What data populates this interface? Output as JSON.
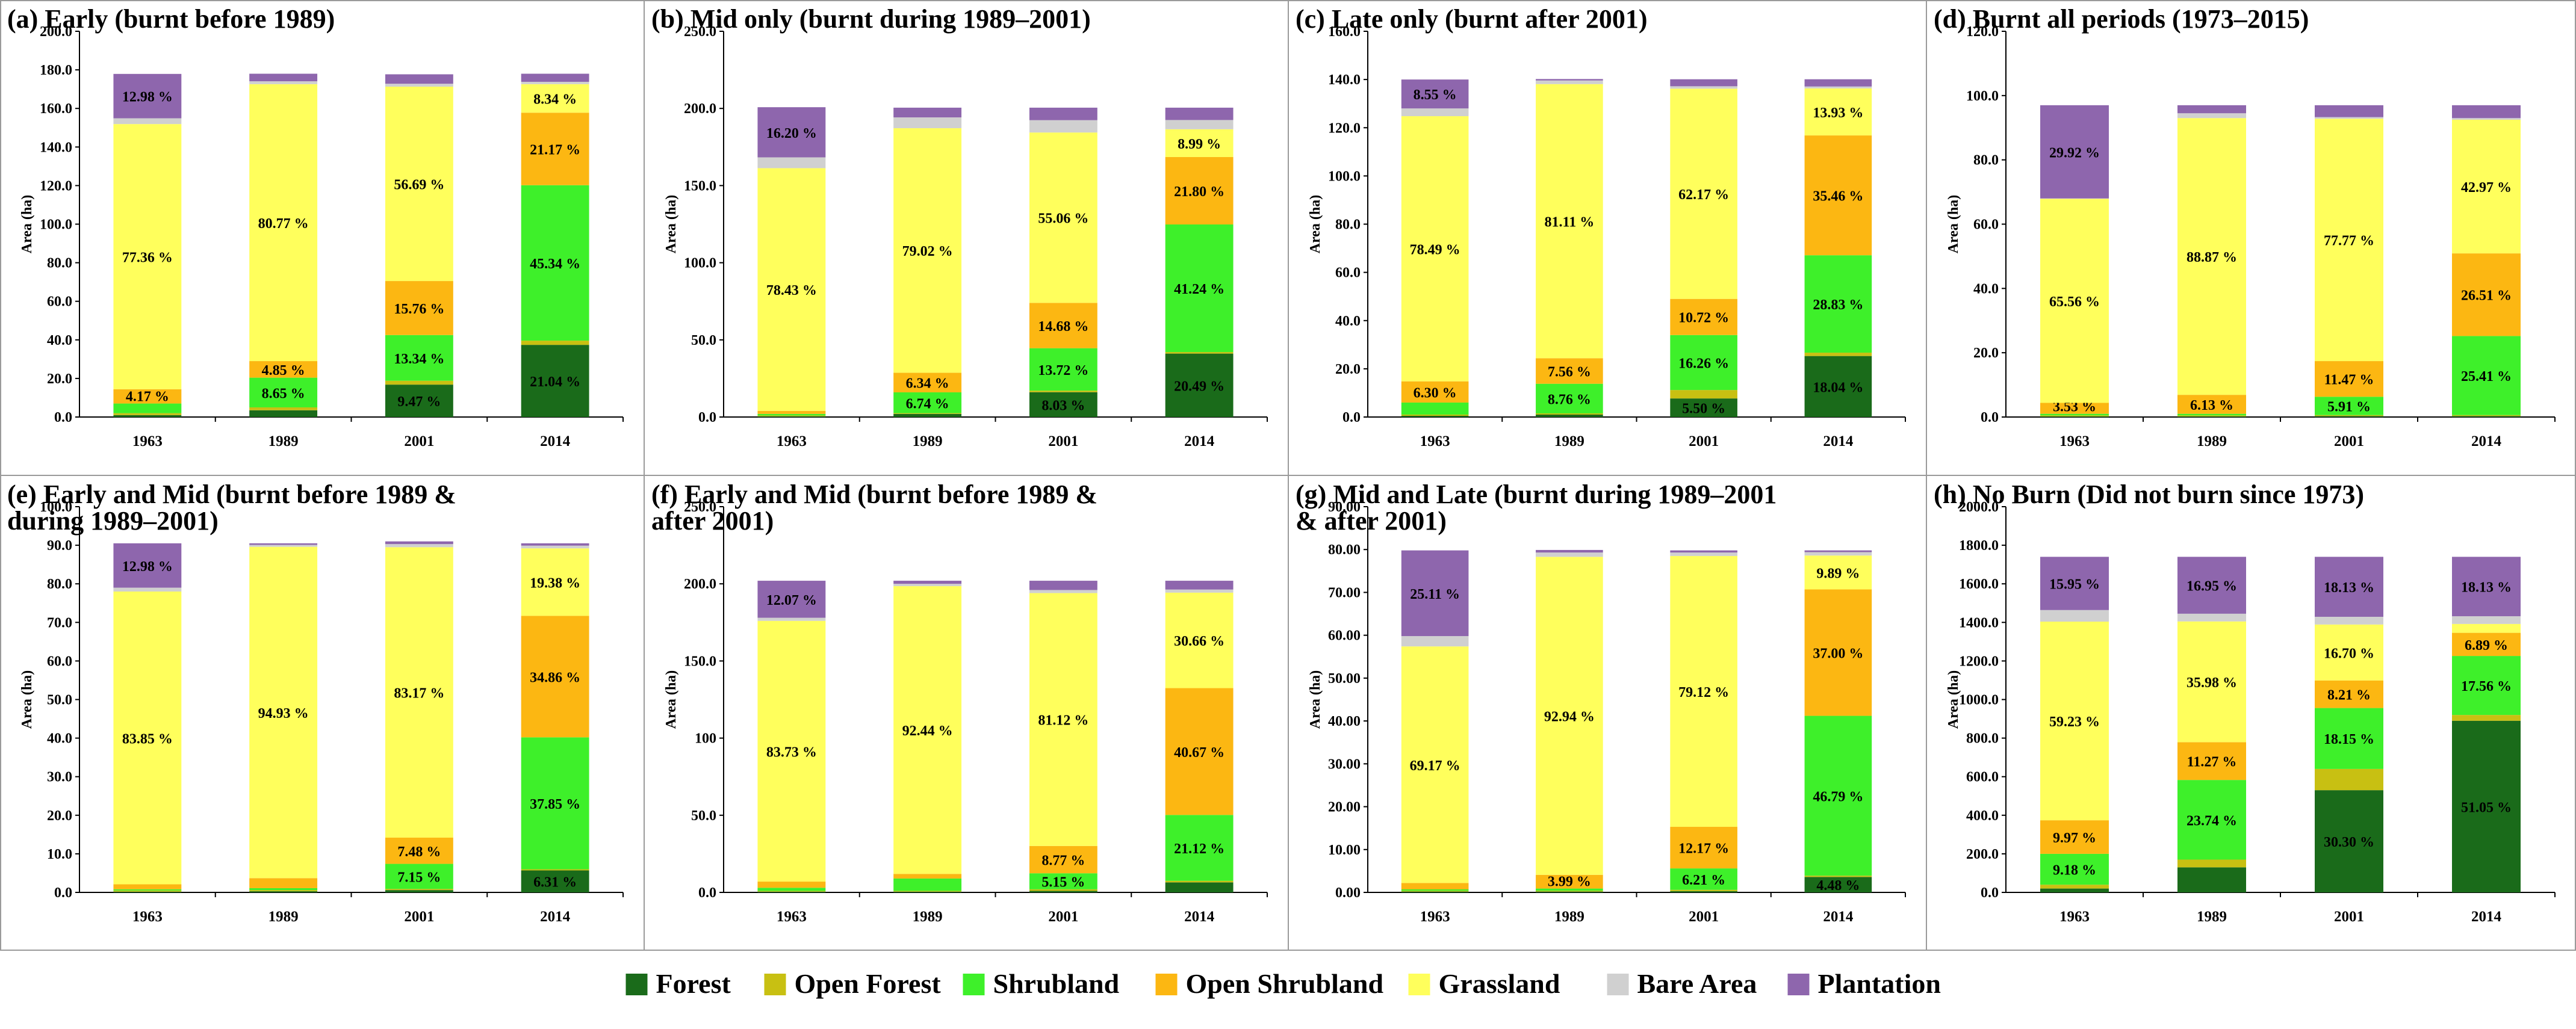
{
  "legend": [
    {
      "name": "Forest",
      "color": "#1a6b1a"
    },
    {
      "name": "Open Forest",
      "color": "#c8c012"
    },
    {
      "name": "Shrubland",
      "color": "#3ef02a"
    },
    {
      "name": "Open Shrubland",
      "color": "#fcb712"
    },
    {
      "name": "Grassland",
      "color": "#ffff5c"
    },
    {
      "name": "Bare Area",
      "color": "#d0d0d0"
    },
    {
      "name": "Plantation",
      "color": "#8e66ad"
    }
  ],
  "chart_data": [
    {
      "type": "bar",
      "stacked": true,
      "title": "(a)     Early (burnt before 1989)",
      "ylabel": "Area (ha)",
      "categories": [
        "1963",
        "1989",
        "2001",
        "2014"
      ],
      "ylim": [
        0,
        200
      ],
      "yticks": [
        "0.0",
        "20.0",
        "40.0",
        "60.0",
        "80.0",
        "100.0",
        "120.0",
        "140.0",
        "160.0",
        "180.0",
        "200.0"
      ],
      "series": [
        {
          "name": "Forest",
          "values": [
            1,
            3.5,
            16.8,
            37.4
          ],
          "labels": [
            "",
            "",
            "9.47 %",
            "21.04 %"
          ]
        },
        {
          "name": "Open Forest",
          "values": [
            1,
            1.5,
            2,
            2.2
          ],
          "labels": [
            "",
            "",
            "",
            ""
          ]
        },
        {
          "name": "Shrubland",
          "values": [
            5,
            15.4,
            23.7,
            80.6
          ],
          "labels": [
            "",
            "8.65 %",
            "13.34 %",
            "45.34 %"
          ]
        },
        {
          "name": "Open Shrubland",
          "values": [
            7.4,
            8.6,
            28,
            37.6
          ],
          "labels": [
            "4.17 %",
            "4.85 %",
            "15.76 %",
            "21.17 %"
          ]
        },
        {
          "name": "Grassland",
          "values": [
            137.5,
            143.6,
            100.8,
            14.8
          ],
          "labels": [
            "77.36 %",
            "80.77 %",
            "56.69 %",
            "8.34 %"
          ]
        },
        {
          "name": "Bare Area",
          "values": [
            3,
            1.5,
            1.5,
            1.2
          ],
          "labels": [
            "",
            "",
            "",
            ""
          ]
        },
        {
          "name": "Plantation",
          "values": [
            23,
            3.9,
            4.9,
            4.2
          ],
          "labels": [
            "12.98 %",
            "",
            "",
            ""
          ]
        }
      ]
    },
    {
      "type": "bar",
      "stacked": true,
      "title": "(b)  Mid only (burnt during 1989–2001)",
      "ylabel": "Area (ha)",
      "categories": [
        "1963",
        "1989",
        "2001",
        "2014"
      ],
      "ylim": [
        0,
        250
      ],
      "yticks": [
        "0.0",
        "50.0",
        "100.0",
        "150.0",
        "200.0",
        "250.0"
      ],
      "series": [
        {
          "name": "Forest",
          "values": [
            0.5,
            2,
            16.1,
            41.1
          ],
          "labels": [
            "",
            "",
            "8.03 %",
            "20.49 %"
          ]
        },
        {
          "name": "Open Forest",
          "values": [
            0.5,
            0.5,
            1,
            1
          ],
          "labels": [
            "",
            "",
            "",
            ""
          ]
        },
        {
          "name": "Shrubland",
          "values": [
            1,
            13.5,
            27.5,
            82.7
          ],
          "labels": [
            "",
            "6.74 %",
            "13.72 %",
            "41.24 %"
          ]
        },
        {
          "name": "Open Shrubland",
          "values": [
            2,
            12.7,
            29.4,
            43.7
          ],
          "labels": [
            "",
            "6.34 %",
            "14.68 %",
            "21.80 %"
          ]
        },
        {
          "name": "Grassland",
          "values": [
            157.3,
            158.5,
            110.4,
            18
          ],
          "labels": [
            "78.43 %",
            "79.02 %",
            "55.06 %",
            "8.99 %"
          ]
        },
        {
          "name": "Bare Area",
          "values": [
            7,
            7,
            8,
            6
          ],
          "labels": [
            "",
            "",
            "",
            ""
          ]
        },
        {
          "name": "Plantation",
          "values": [
            32.5,
            6.3,
            8.1,
            8
          ],
          "labels": [
            "16.20 %",
            "",
            "",
            ""
          ]
        }
      ]
    },
    {
      "type": "bar",
      "stacked": true,
      "title": "(c)      Late only (burnt after 2001)",
      "ylabel": "Area (ha)",
      "categories": [
        "1963",
        "1989",
        "2001",
        "2014"
      ],
      "ylim": [
        0,
        160
      ],
      "yticks": [
        "0.0",
        "20.0",
        "40.0",
        "60.0",
        "80.0",
        "100.0",
        "120.0",
        "140.0",
        "160.0"
      ],
      "series": [
        {
          "name": "Forest",
          "values": [
            0.5,
            1,
            7.7,
            25.3
          ],
          "labels": [
            "",
            "",
            "5.50 %",
            "18.04 %"
          ]
        },
        {
          "name": "Open Forest",
          "values": [
            0.5,
            0.5,
            3.5,
            1.4
          ],
          "labels": [
            "",
            "",
            "",
            ""
          ]
        },
        {
          "name": "Shrubland",
          "values": [
            5,
            12.3,
            22.8,
            40.4
          ],
          "labels": [
            "",
            "8.76 %",
            "16.26 %",
            "28.83 %"
          ]
        },
        {
          "name": "Open Shrubland",
          "values": [
            8.8,
            10.6,
            15,
            49.7
          ],
          "labels": [
            "6.30 %",
            "7.56 %",
            "10.72 %",
            "35.46 %"
          ]
        },
        {
          "name": "Grassland",
          "values": [
            110,
            113.7,
            87.2,
            19.5
          ],
          "labels": [
            "78.49 %",
            "81.11 %",
            "62.17 %",
            "13.93 %"
          ]
        },
        {
          "name": "Bare Area",
          "values": [
            3.2,
            1.5,
            1,
            0.8
          ],
          "labels": [
            "",
            "",
            "",
            ""
          ]
        },
        {
          "name": "Plantation",
          "values": [
            12,
            0.6,
            2.9,
            3
          ],
          "labels": [
            "8.55 %",
            "",
            "",
            ""
          ]
        }
      ]
    },
    {
      "type": "bar",
      "stacked": true,
      "title": "(d)          Burnt all periods (1973–2015)",
      "ylabel": "Area (ha)",
      "categories": [
        "1963",
        "1989",
        "2001",
        "2014"
      ],
      "ylim": [
        0,
        120
      ],
      "yticks": [
        "0.0",
        "20.0",
        "40.0",
        "60.0",
        "80.0",
        "100.0",
        "120.0"
      ],
      "series": [
        {
          "name": "Forest",
          "values": [
            0.2,
            0.2,
            0.3,
            0.3
          ],
          "labels": [
            "",
            "",
            "",
            ""
          ]
        },
        {
          "name": "Open Forest",
          "values": [
            0.3,
            0.3,
            0.3,
            0.3
          ],
          "labels": [
            "",
            "",
            "",
            ""
          ]
        },
        {
          "name": "Shrubland",
          "values": [
            0.5,
            0.5,
            5.7,
            24.6
          ],
          "labels": [
            "",
            "",
            "5.91 %",
            "25.41 %"
          ]
        },
        {
          "name": "Open Shrubland",
          "values": [
            3.4,
            5.9,
            11.1,
            25.7
          ],
          "labels": [
            "3.53 %",
            "6.13 %",
            "11.47 %",
            "26.51 %"
          ]
        },
        {
          "name": "Grassland",
          "values": [
            63.5,
            86.1,
            75.4,
            41.6
          ],
          "labels": [
            "65.56 %",
            "88.87 %",
            "77.77 %",
            "42.97 %"
          ]
        },
        {
          "name": "Bare Area",
          "values": [
            0.1,
            1.5,
            0.5,
            0.5
          ],
          "labels": [
            "",
            "",
            "",
            ""
          ]
        },
        {
          "name": "Plantation",
          "values": [
            29,
            2.5,
            3.7,
            4
          ],
          "labels": [
            "29.92 %",
            "",
            "",
            ""
          ]
        }
      ]
    },
    {
      "type": "bar",
      "stacked": true,
      "title": "(e) Early and Mid (burnt before 1989 &\nduring 1989–2001)",
      "ylabel": "Area (ha)",
      "categories": [
        "1963",
        "1989",
        "2001",
        "2014"
      ],
      "ylim": [
        0,
        100
      ],
      "yticks": [
        "0.0",
        "10.0",
        "20.0",
        "30.0",
        "40.0",
        "50.0",
        "60.0",
        "70.0",
        "80.0",
        "90.0",
        "100.0"
      ],
      "series": [
        {
          "name": "Forest",
          "values": [
            0.2,
            0.3,
            0.6,
            5.7
          ],
          "labels": [
            "",
            "",
            "",
            "6.31 %"
          ]
        },
        {
          "name": "Open Forest",
          "values": [
            0.3,
            0.3,
            0.3,
            0.3
          ],
          "labels": [
            "",
            "",
            "",
            ""
          ]
        },
        {
          "name": "Shrubland",
          "values": [
            0.3,
            0.5,
            6.5,
            34.2
          ],
          "labels": [
            "",
            "",
            "7.15 %",
            "37.85 %"
          ]
        },
        {
          "name": "Open Shrubland",
          "values": [
            1.3,
            2.6,
            6.8,
            31.5
          ],
          "labels": [
            "",
            "",
            "7.48 %",
            "34.86 %"
          ]
        },
        {
          "name": "Grassland",
          "values": [
            75.9,
            85.9,
            75.3,
            17.5
          ],
          "labels": [
            "83.85 %",
            "94.93 %",
            "83.17 %",
            "19.38 %"
          ]
        },
        {
          "name": "Bare Area",
          "values": [
            1,
            0.5,
            0.8,
            0.7
          ],
          "labels": [
            "",
            "",
            "",
            ""
          ]
        },
        {
          "name": "Plantation",
          "values": [
            11.5,
            0.4,
            0.7,
            0.6
          ],
          "labels": [
            "12.98 %",
            "",
            "",
            ""
          ]
        }
      ]
    },
    {
      "type": "bar",
      "stacked": true,
      "title": "(f) Early and Mid (burnt before 1989 &\nafter 2001)",
      "ylabel": "Area (ha)",
      "categories": [
        "1963",
        "1989",
        "2001",
        "2014"
      ],
      "ylim": [
        0,
        250
      ],
      "yticks": [
        "0.0",
        "50.0",
        "100",
        "150.0",
        "200.0",
        "250.0"
      ],
      "series": [
        {
          "name": "Forest",
          "values": [
            0.5,
            0.5,
            1,
            6.5
          ],
          "labels": [
            "",
            "",
            "",
            ""
          ]
        },
        {
          "name": "Open Forest",
          "values": [
            0.5,
            0.5,
            1,
            1
          ],
          "labels": [
            "",
            "",
            "",
            ""
          ]
        },
        {
          "name": "Shrubland",
          "values": [
            2,
            8,
            10.4,
            42.7
          ],
          "labels": [
            "",
            "",
            "5.15 %",
            "21.12 %"
          ]
        },
        {
          "name": "Open Shrubland",
          "values": [
            4,
            3,
            17.7,
            82.2
          ],
          "labels": [
            "",
            "",
            "8.77 %",
            "40.67 %"
          ]
        },
        {
          "name": "Grassland",
          "values": [
            169,
            186.5,
            163.9,
            61.9
          ],
          "labels": [
            "83.73 %",
            "92.44 %",
            "81.12 %",
            "30.66 %"
          ]
        },
        {
          "name": "Bare Area",
          "values": [
            2,
            1.5,
            2,
            2
          ],
          "labels": [
            "",
            "",
            "",
            ""
          ]
        },
        {
          "name": "Plantation",
          "values": [
            24,
            2,
            6,
            5.7
          ],
          "labels": [
            "12.07 %",
            "",
            "",
            ""
          ]
        }
      ]
    },
    {
      "type": "bar",
      "stacked": true,
      "title": "(g) Mid and Late (burnt during 1989–2001\n& after 2001)",
      "ylabel": "Area (ha)",
      "categories": [
        "1963",
        "1989",
        "2001",
        "2014"
      ],
      "ylim": [
        0,
        90
      ],
      "yticks": [
        "0.00",
        "10.00",
        "20.00",
        "30.00",
        "40.00",
        "50.00",
        "60.00",
        "70.00",
        "80.00",
        "90.00"
      ],
      "series": [
        {
          "name": "Forest",
          "values": [
            0.2,
            0.2,
            0.3,
            3.6
          ],
          "labels": [
            "",
            "",
            "",
            "4.48 %"
          ]
        },
        {
          "name": "Open Forest",
          "values": [
            0.2,
            0.2,
            0.3,
            0.3
          ],
          "labels": [
            "",
            "",
            "",
            ""
          ]
        },
        {
          "name": "Shrubland",
          "values": [
            0.3,
            0.5,
            5,
            37.3
          ],
          "labels": [
            "",
            "",
            "6.21 %",
            "46.79 %"
          ]
        },
        {
          "name": "Open Shrubland",
          "values": [
            1.5,
            3.2,
            9.7,
            29.5
          ],
          "labels": [
            "",
            "3.99 %",
            "12.17 %",
            "37.00 %"
          ]
        },
        {
          "name": "Grassland",
          "values": [
            55.2,
            74.2,
            63.2,
            7.9
          ],
          "labels": [
            "69.17 %",
            "92.94 %",
            "79.12 %",
            "9.89 %"
          ]
        },
        {
          "name": "Bare Area",
          "values": [
            2.4,
            1,
            0.8,
            0.8
          ],
          "labels": [
            "",
            "",
            "",
            ""
          ]
        },
        {
          "name": "Plantation",
          "values": [
            20,
            0.6,
            0.5,
            0.4
          ],
          "labels": [
            "25.11 %",
            "",
            "",
            ""
          ]
        }
      ]
    },
    {
      "type": "bar",
      "stacked": true,
      "title": "(h)  No Burn (Did not burn since 1973)",
      "ylabel": "Area (ha)",
      "categories": [
        "1963",
        "1989",
        "2001",
        "2014"
      ],
      "ylim": [
        0,
        2000
      ],
      "yticks": [
        "0.0",
        "200.0",
        "400.0",
        "600.0",
        "800.0",
        "1000.0",
        "1200.0",
        "1400.0",
        "1600.0",
        "1800.0",
        "2000.0"
      ],
      "series": [
        {
          "name": "Forest",
          "values": [
            20,
            130,
            530,
            890
          ],
          "labels": [
            "",
            "",
            "30.30 %",
            "51.05 %"
          ]
        },
        {
          "name": "Open Forest",
          "values": [
            20,
            40,
            110,
            30
          ],
          "labels": [
            "",
            "",
            "",
            ""
          ]
        },
        {
          "name": "Shrubland",
          "values": [
            160,
            413,
            316,
            306
          ],
          "labels": [
            "9.18 %",
            "23.74 %",
            "18.15 %",
            "17.56 %"
          ]
        },
        {
          "name": "Open Shrubland",
          "values": [
            174,
            196,
            143,
            120
          ],
          "labels": [
            "9.97 %",
            "11.27 %",
            "8.21 %",
            "6.89 %"
          ]
        },
        {
          "name": "Grassland",
          "values": [
            1030,
            626,
            290,
            46
          ],
          "labels": [
            "59.23 %",
            "35.98 %",
            "16.70 %",
            ""
          ]
        },
        {
          "name": "Bare Area",
          "values": [
            60,
            40,
            40,
            40
          ],
          "labels": [
            "",
            "",
            "",
            ""
          ]
        },
        {
          "name": "Plantation",
          "values": [
            276,
            295,
            311,
            308
          ],
          "labels": [
            "15.95 %",
            "16.95 %",
            "18.13 %",
            "18.13 %"
          ]
        }
      ]
    }
  ]
}
